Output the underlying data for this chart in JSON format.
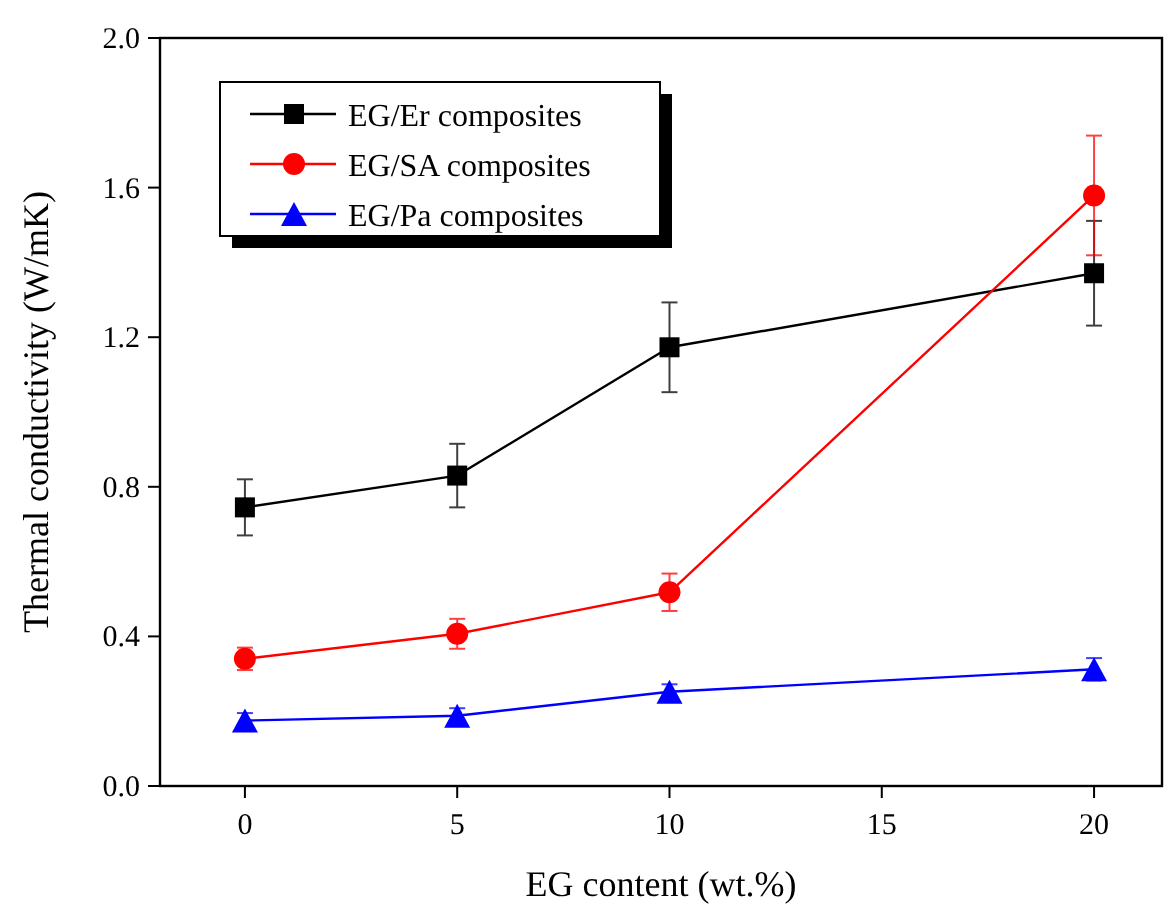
{
  "chart_data": {
    "type": "line",
    "xlabel": "EG content (wt.%)",
    "ylabel": "Thermal conductivity (W/mK)",
    "x": [
      0,
      5,
      10,
      20
    ],
    "series": [
      {
        "name": "EG/Er composites",
        "color": "#000000",
        "marker": "square",
        "values": [
          0.745,
          0.83,
          1.173,
          1.371
        ],
        "errors": [
          0.075,
          0.085,
          0.12,
          0.14
        ]
      },
      {
        "name": "EG/SA composites",
        "color": "#ff0000",
        "marker": "circle",
        "values": [
          0.34,
          0.407,
          0.518,
          1.579
        ],
        "errors": [
          0.03,
          0.04,
          0.05,
          0.16
        ]
      },
      {
        "name": "EG/Pa composites",
        "color": "#0000ff",
        "marker": "triangle",
        "values": [
          0.175,
          0.188,
          0.252,
          0.312
        ],
        "errors": [
          0.02,
          0.02,
          0.02,
          0.03
        ]
      }
    ],
    "xlim": [
      -2,
      21.6
    ],
    "xticks": [
      0,
      5,
      10,
      15,
      20
    ],
    "ylim": [
      0,
      2.0
    ],
    "yticks": [
      {
        "value": 0,
        "label": "0.0"
      },
      {
        "value": 0.4,
        "label": "0.4"
      },
      {
        "value": 0.8,
        "label": "0.8"
      },
      {
        "value": 1.2,
        "label": "1.2"
      },
      {
        "value": 1.6,
        "label": "1.6"
      },
      {
        "value": 2.0,
        "label": "2.0"
      }
    ],
    "grid": false,
    "legend": "top left",
    "line_style": "solid"
  }
}
